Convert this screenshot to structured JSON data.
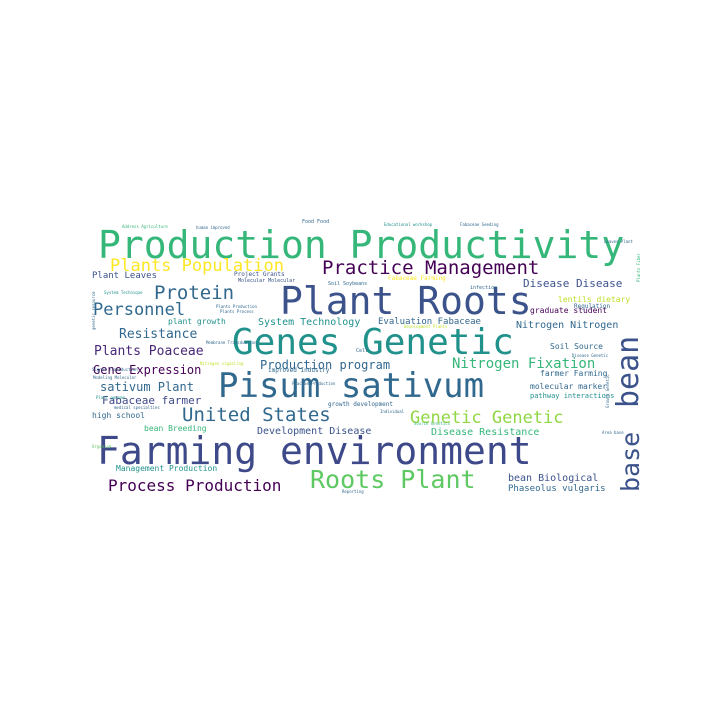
{
  "palette": {
    "teal_green": "#35b779",
    "green": "#5ec962",
    "bright_green": "#90d743",
    "lime": "#bddf26",
    "yellow": "#fde725",
    "teal": "#21918c",
    "blue": "#31688e",
    "indigo": "#3b528b",
    "purple": "#440154",
    "dark_purple": "#482878"
  },
  "words": [
    {
      "text": "Production Productivity",
      "color": "#35b779"
    },
    {
      "text": "Plant Roots",
      "color": "#3b528b"
    },
    {
      "text": "Genes Genetic",
      "color": "#21918c"
    },
    {
      "text": "Pisum sativum",
      "color": "#31688e"
    },
    {
      "text": "Farming environment",
      "color": "#3e4989"
    },
    {
      "text": "bean",
      "color": "#3b528b"
    },
    {
      "text": "base",
      "color": "#3b528b"
    },
    {
      "text": "Roots Plant",
      "color": "#5ec962"
    },
    {
      "text": "Practice Management",
      "color": "#440154"
    },
    {
      "text": "Plants Population",
      "color": "#fde725"
    },
    {
      "text": "Protein",
      "color": "#31688e"
    },
    {
      "text": "Personnel",
      "color": "#31688e"
    },
    {
      "text": "United States",
      "color": "#31688e"
    },
    {
      "text": "Genetic Genetic",
      "color": "#90d743"
    },
    {
      "text": "Process Production",
      "color": "#440154"
    },
    {
      "text": "Nitrogen Fixation",
      "color": "#35b779"
    },
    {
      "text": "Plants Poaceae",
      "color": "#482878"
    },
    {
      "text": "Resistance",
      "color": "#31688e"
    },
    {
      "text": "Production program",
      "color": "#31688e"
    },
    {
      "text": "sativum Plant",
      "color": "#31688e"
    },
    {
      "text": "Gene Expression",
      "color": "#440154"
    },
    {
      "text": "Fabaceae farmer",
      "color": "#3e4989"
    },
    {
      "text": "Development Disease",
      "color": "#3b528b"
    },
    {
      "text": "Disease Resistance",
      "color": "#35b779"
    },
    {
      "text": "bean Biological",
      "color": "#3b528b"
    },
    {
      "text": "Phaseolus vulgaris",
      "color": "#31688e"
    },
    {
      "text": "Disease Disease",
      "color": "#3b528b"
    },
    {
      "text": "System Technology",
      "color": "#21918c"
    },
    {
      "text": "Evaluation Fabaceae",
      "color": "#31688e"
    },
    {
      "text": "Nitrogen Nitrogen",
      "color": "#31688e"
    },
    {
      "text": "Plant Leaves",
      "color": "#3b528b"
    },
    {
      "text": "plant growth",
      "color": "#21918c"
    },
    {
      "text": "graduate student",
      "color": "#440154"
    },
    {
      "text": "Soil Source",
      "color": "#31688e"
    },
    {
      "text": "farmer Farming",
      "color": "#31688e"
    },
    {
      "text": "molecular marker",
      "color": "#31688e"
    },
    {
      "text": "pathway interactions",
      "color": "#21918c"
    },
    {
      "text": "high school",
      "color": "#31688e"
    },
    {
      "text": "bean Breeding",
      "color": "#35b779"
    },
    {
      "text": "Management Production",
      "color": "#21918c"
    },
    {
      "text": "lentils dietary",
      "color": "#bddf26"
    },
    {
      "text": "Regulation",
      "color": "#31688e"
    },
    {
      "text": "Project Grants",
      "color": "#3b528b"
    },
    {
      "text": "Molecular Molecular",
      "color": "#3b528b"
    },
    {
      "text": "Fabaceae Farming",
      "color": "#fde725"
    },
    {
      "text": "Soil Soybeans",
      "color": "#31688e"
    },
    {
      "text": "infection",
      "color": "#31688e"
    },
    {
      "text": "Food Food",
      "color": "#31688e"
    },
    {
      "text": "Educational workshop",
      "color": "#21918c"
    },
    {
      "text": "Fabaceae Seeding",
      "color": "#31688e"
    },
    {
      "text": "Address Agriculture",
      "color": "#35b779"
    },
    {
      "text": "human improved",
      "color": "#31688e"
    },
    {
      "text": "improved Industry",
      "color": "#31688e"
    },
    {
      "text": "growth development",
      "color": "#31688e"
    },
    {
      "text": "Signal Transduction",
      "color": "#31688e"
    },
    {
      "text": "Individual",
      "color": "#31688e"
    },
    {
      "text": "Development Plants",
      "color": "#bddf26"
    },
    {
      "text": "Cell",
      "color": "#31688e"
    },
    {
      "text": "Reporting",
      "color": "#31688e"
    },
    {
      "text": "Area base",
      "color": "#31688e"
    },
    {
      "text": "Leaves Plant",
      "color": "#31688e"
    },
    {
      "text": "medical specialties",
      "color": "#31688e"
    },
    {
      "text": "Plants Fiber",
      "color": "#35b779"
    },
    {
      "text": "Plants Production",
      "color": "#31688e"
    },
    {
      "text": "Plants Process",
      "color": "#31688e"
    },
    {
      "text": "System Technique",
      "color": "#21918c"
    },
    {
      "text": "Modeling Molecular",
      "color": "#31688e"
    },
    {
      "text": "Membrane Transduction",
      "color": "#31688e"
    },
    {
      "text": "Poaceae Production",
      "color": "#31688e"
    },
    {
      "text": "genetic resource",
      "color": "#31688e"
    },
    {
      "text": "Organism",
      "color": "#5ec962"
    },
    {
      "text": "Disease Genetic",
      "color": "#31688e"
    },
    {
      "text": "Growth Genetic",
      "color": "#31688e"
    },
    {
      "text": "Plant genome",
      "color": "#21918c"
    },
    {
      "text": "Nitrogen signaling",
      "color": "#bddf26"
    },
    {
      "text": "Source Genetics",
      "color": "#35b779"
    }
  ]
}
